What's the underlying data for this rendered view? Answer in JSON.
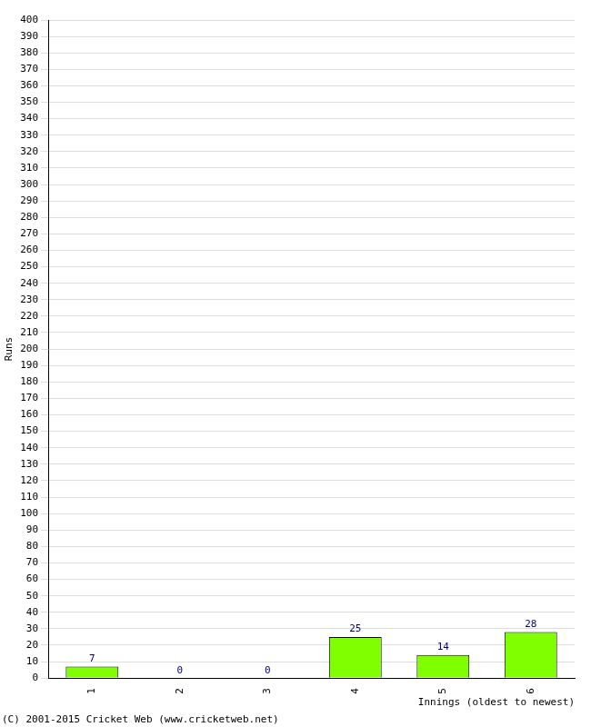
{
  "chart_data": {
    "type": "bar",
    "x_label": "Innings (oldest to newest)",
    "y_label": "Runs",
    "annotations": [
      "(C) 2001-2015 Cricket Web (www.cricketweb.net)"
    ],
    "categories": [
      "1",
      "2",
      "3",
      "4",
      "5",
      "6"
    ],
    "values": [
      7,
      0,
      0,
      25,
      14,
      28
    ],
    "color": "#80ff00",
    "ylim": [
      0,
      400
    ],
    "yticks": [
      0,
      10,
      20,
      30,
      40,
      50,
      60,
      70,
      80,
      90,
      100,
      110,
      120,
      130,
      140,
      150,
      160,
      170,
      180,
      190,
      200,
      210,
      220,
      230,
      240,
      250,
      260,
      270,
      280,
      290,
      300,
      310,
      320,
      330,
      340,
      350,
      360,
      370,
      380,
      390,
      400
    ],
    "grid": true,
    "data_labels": true
  }
}
